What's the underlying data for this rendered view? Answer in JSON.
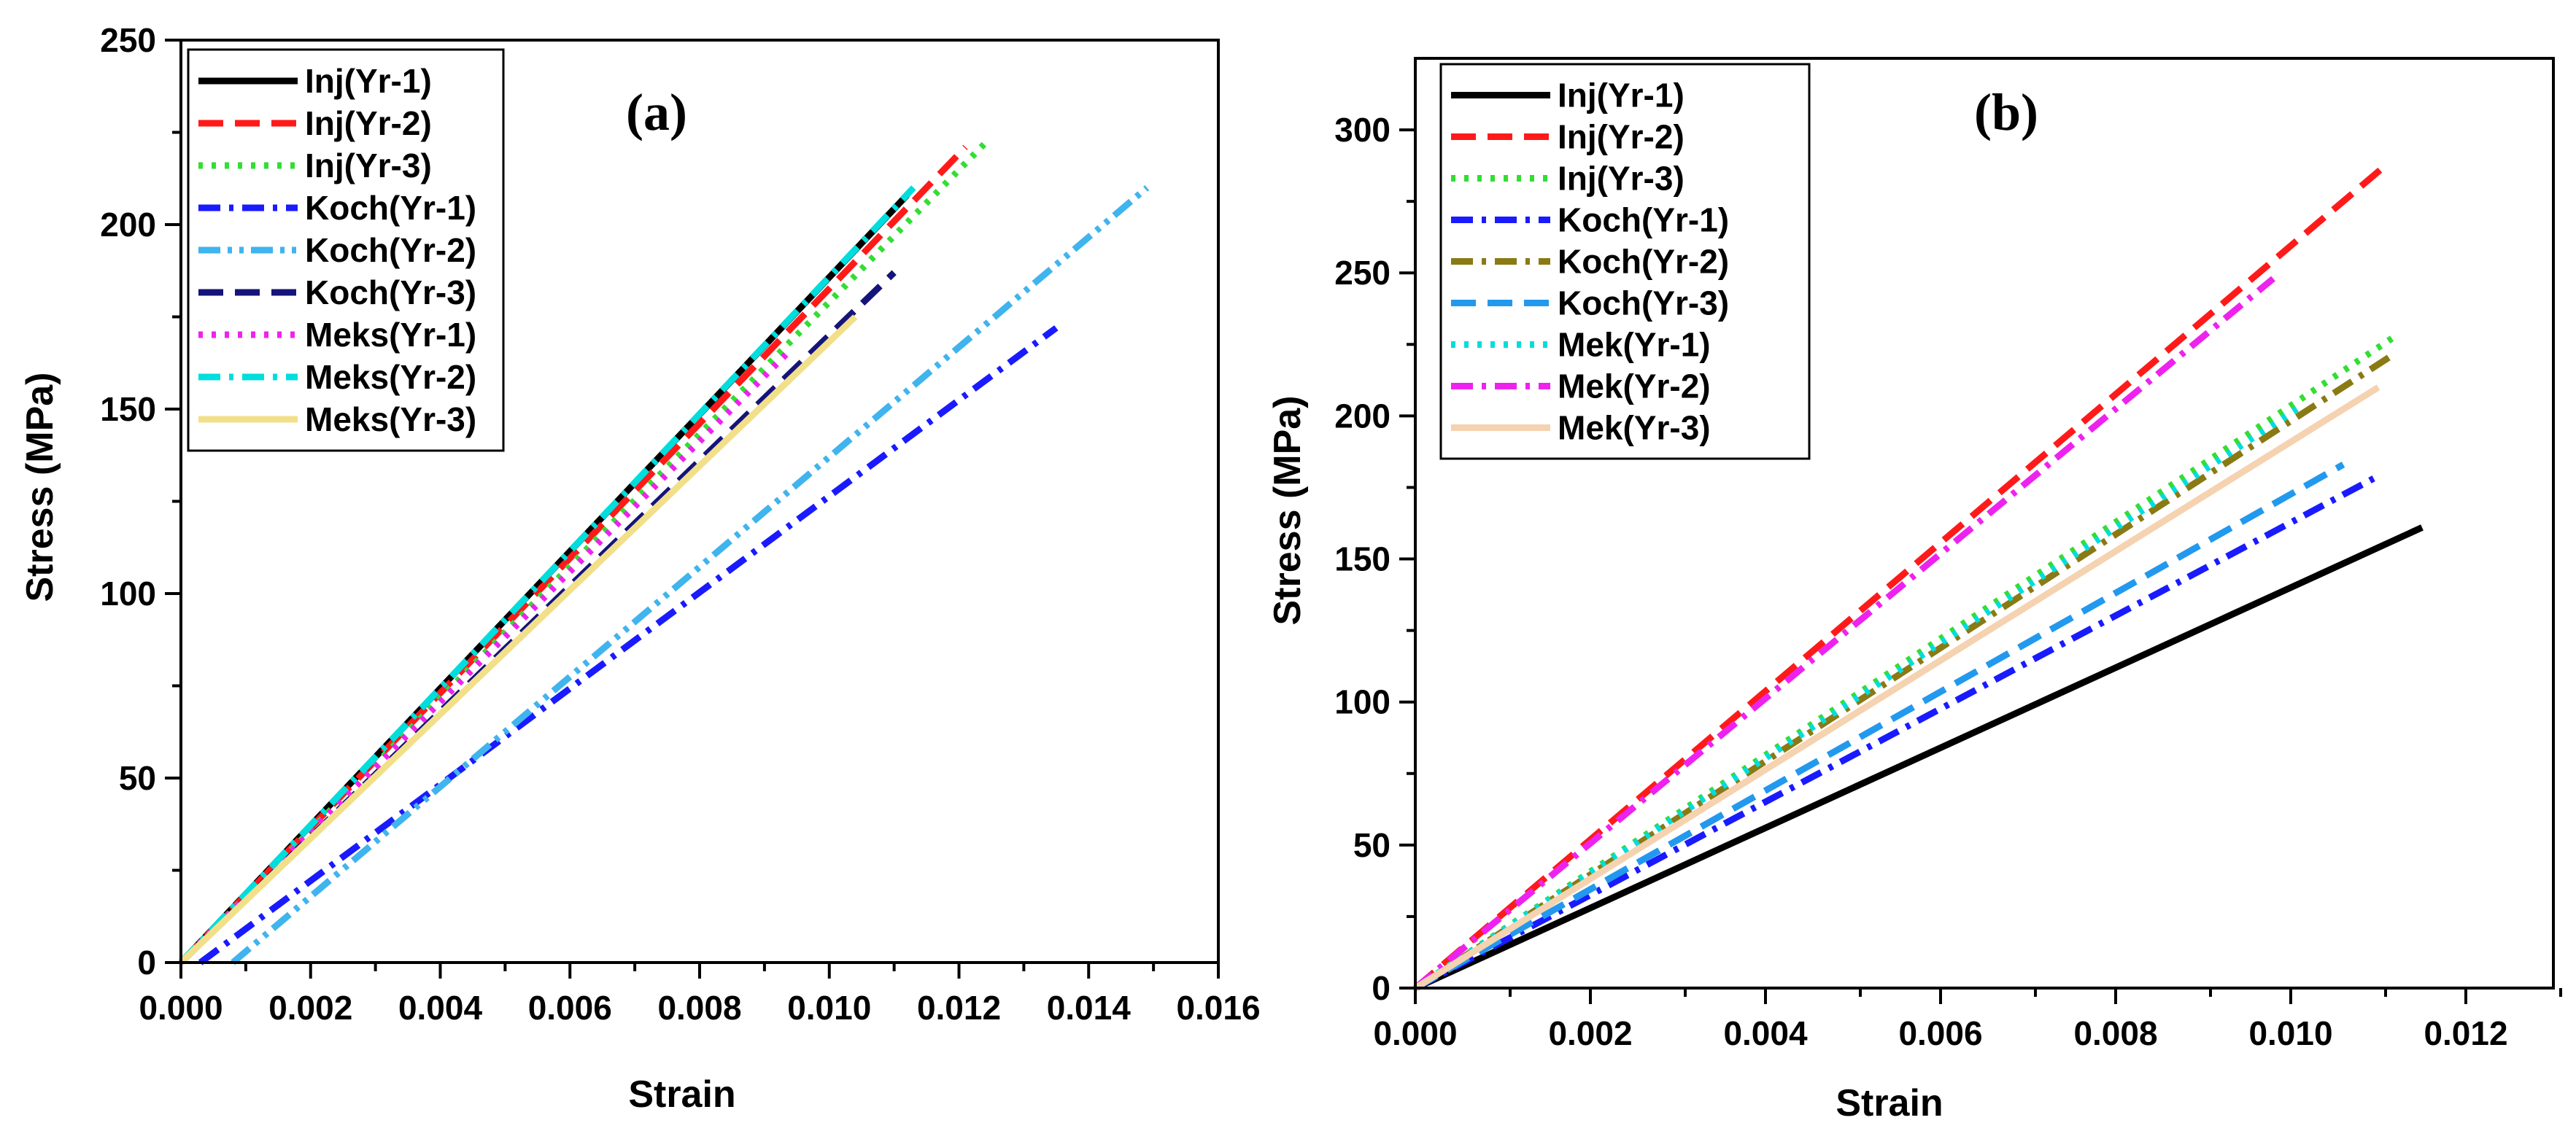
{
  "chart_data": [
    {
      "id": "a",
      "type": "line",
      "panel_label": "(a)",
      "xlabel": "Strain",
      "ylabel": "Stress (MPa)",
      "xlim": [
        0,
        0.016
      ],
      "ylim": [
        0,
        250
      ],
      "xticks": [
        "0.000",
        "0.002",
        "0.004",
        "0.006",
        "0.008",
        "0.010",
        "0.012",
        "0.014",
        "0.016"
      ],
      "yticks": [
        "0",
        "50",
        "100",
        "150",
        "200",
        "250"
      ],
      "legend_position": "top-left",
      "series": [
        {
          "name": "Inj(Yr-1)",
          "color": "#000000",
          "dash": "solid",
          "x": [
            0,
            0.0112
          ],
          "y": [
            0,
            208
          ]
        },
        {
          "name": "Inj(Yr-2)",
          "color": "#ff1a1a",
          "dash": "dash",
          "x": [
            0,
            0.0121
          ],
          "y": [
            0,
            221
          ]
        },
        {
          "name": "Inj(Yr-3)",
          "color": "#33dd33",
          "dash": "dot",
          "x": [
            0,
            0.0124
          ],
          "y": [
            0,
            222
          ]
        },
        {
          "name": "Koch(Yr-1)",
          "color": "#1a1aff",
          "dash": "dashdot",
          "x": [
            0.0003,
            0.0135
          ],
          "y": [
            0,
            172
          ]
        },
        {
          "name": "Koch(Yr-2)",
          "color": "#3fb4ee",
          "dash": "dashdotdot",
          "x": [
            0.0008,
            0.0149
          ],
          "y": [
            0,
            210
          ]
        },
        {
          "name": "Koch(Yr-3)",
          "color": "#14147a",
          "dash": "dash",
          "x": [
            0,
            0.011
          ],
          "y": [
            0,
            187
          ]
        },
        {
          "name": "Meks(Yr-1)",
          "color": "#ee22ee",
          "dash": "dot",
          "x": [
            0,
            0.0094
          ],
          "y": [
            0,
            166
          ]
        },
        {
          "name": "Meks(Yr-2)",
          "color": "#00dddd",
          "dash": "dashdot",
          "x": [
            0,
            0.0113
          ],
          "y": [
            0,
            210
          ]
        },
        {
          "name": "Meks(Yr-3)",
          "color": "#f2df8a",
          "dash": "solid",
          "x": [
            0,
            0.0104
          ],
          "y": [
            0,
            175
          ]
        }
      ]
    },
    {
      "id": "b",
      "type": "line",
      "panel_label": "(b)",
      "xlabel": "Strain",
      "ylabel": "Stress (MPa)",
      "xlim": [
        0,
        0.013
      ],
      "ylim": [
        0,
        325
      ],
      "xticks": [
        "0.000",
        "0.002",
        "0.004",
        "0.006",
        "0.008",
        "0.010",
        "0.012"
      ],
      "yticks": [
        "0",
        "50",
        "100",
        "150",
        "200",
        "250",
        "300"
      ],
      "legend_position": "top-left",
      "series": [
        {
          "name": "Inj(Yr-1)",
          "color": "#000000",
          "dash": "solid",
          "x": [
            0,
            0.0115
          ],
          "y": [
            0,
            161
          ]
        },
        {
          "name": "Inj(Yr-2)",
          "color": "#ff1a1a",
          "dash": "dash",
          "x": [
            0,
            0.0111
          ],
          "y": [
            0,
            288
          ]
        },
        {
          "name": "Inj(Yr-3)",
          "color": "#33dd33",
          "dash": "dot",
          "x": [
            0,
            0.0112
          ],
          "y": [
            0,
            228
          ]
        },
        {
          "name": "Koch(Yr-1)",
          "color": "#1a1aff",
          "dash": "dashdot",
          "x": [
            0,
            0.011
          ],
          "y": [
            0,
            179
          ]
        },
        {
          "name": "Koch(Yr-2)",
          "color": "#8a7a14",
          "dash": "dashdot",
          "x": [
            0,
            0.0112
          ],
          "y": [
            0,
            222
          ]
        },
        {
          "name": "Koch(Yr-3)",
          "color": "#2299ee",
          "dash": "dash",
          "x": [
            0,
            0.0106
          ],
          "y": [
            0,
            183
          ]
        },
        {
          "name": "Mek(Yr-1)",
          "color": "#00dddd",
          "dash": "dot",
          "x": [
            0,
            0.0101
          ],
          "y": [
            0,
            203
          ]
        },
        {
          "name": "Mek(Yr-2)",
          "color": "#ee22ee",
          "dash": "dashdot",
          "x": [
            0,
            0.0098
          ],
          "y": [
            0,
            248
          ]
        },
        {
          "name": "Mek(Yr-3)",
          "color": "#f5d2b0",
          "dash": "solid",
          "x": [
            0,
            0.011
          ],
          "y": [
            0,
            210
          ]
        }
      ]
    }
  ]
}
